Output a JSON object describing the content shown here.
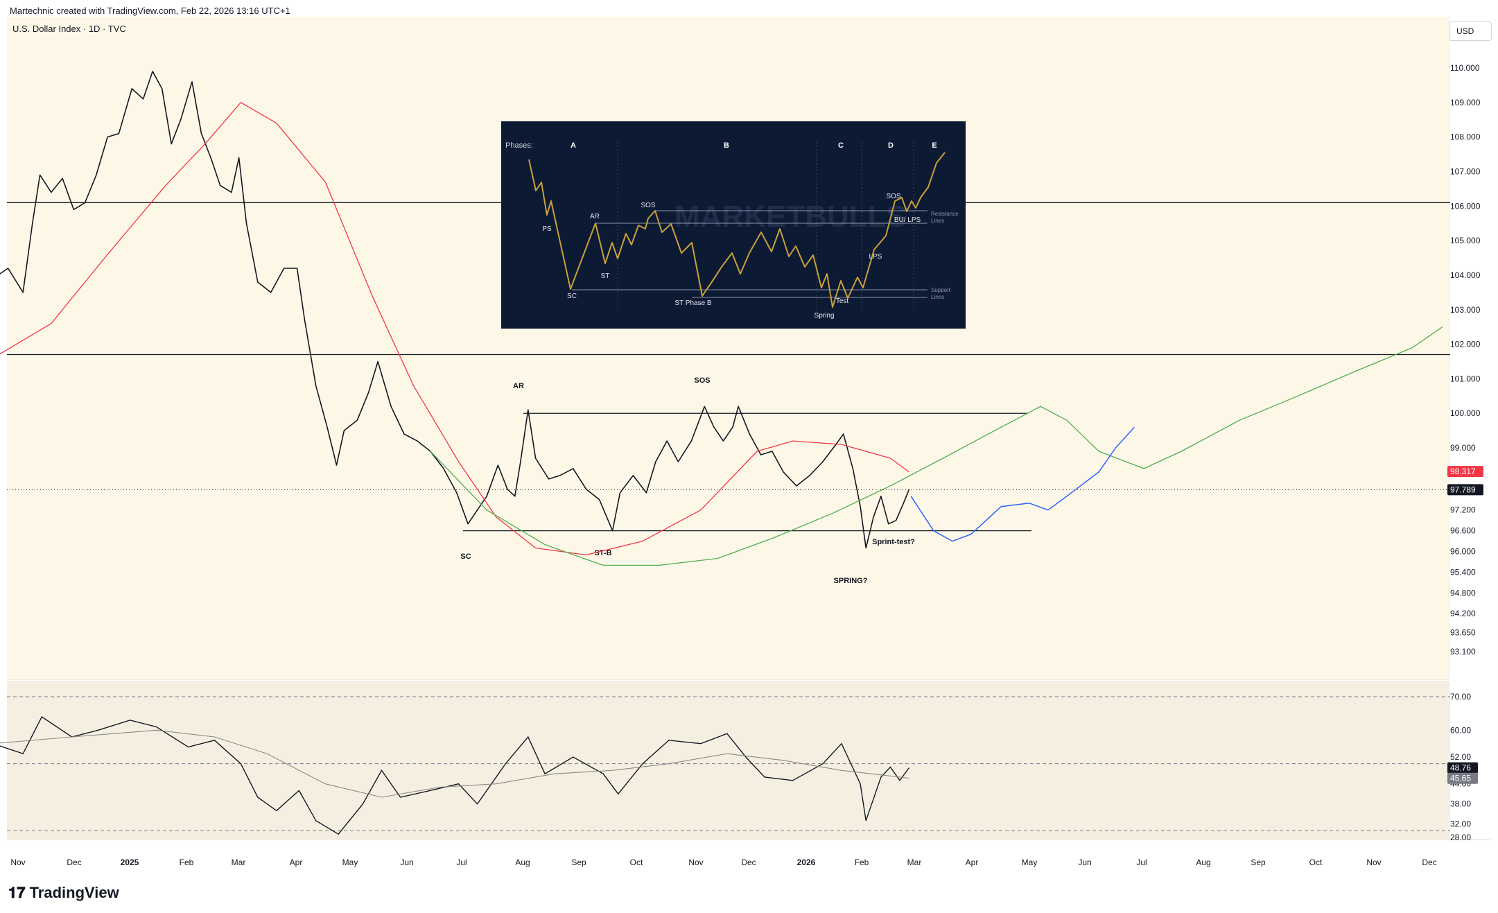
{
  "header": {
    "credit": "Martechnic created with TradingView.com, Feb 22, 2026 13:16 UTC+1"
  },
  "symbol": {
    "title": "U.S. Dollar Index · 1D · TVC"
  },
  "currency_button": "USD",
  "footer": {
    "brand": "TradingView"
  },
  "colors": {
    "background": "#fdf7e7",
    "ma_red": "#f23645",
    "ma_green": "#4caf50",
    "projection_blue": "#2962ff",
    "inset_bg": "#0d1a33",
    "inset_line": "#c9a13a"
  },
  "chart_data": [
    {
      "type": "line",
      "title": "U.S. Dollar Index · 1D · TVC",
      "xlabel": "",
      "ylabel": "",
      "x_ticks": [
        "Nov",
        "Dec",
        "2025",
        "Feb",
        "Mar",
        "Apr",
        "May",
        "Jun",
        "Jul",
        "Aug",
        "Sep",
        "Oct",
        "Nov",
        "Dec",
        "2026",
        "Feb",
        "Mar",
        "Apr",
        "May",
        "Jun",
        "Jul",
        "Aug",
        "Sep",
        "Oct",
        "Nov",
        "Dec"
      ],
      "y_ticks": [
        "110.000",
        "109.000",
        "108.000",
        "107.000",
        "106.000",
        "105.000",
        "104.000",
        "103.000",
        "102.000",
        "101.000",
        "100.000",
        "99.000",
        "97.200",
        "96.600",
        "96.000",
        "95.400",
        "94.800",
        "94.200",
        "93.650",
        "93.100"
      ],
      "ylim": [
        92.6,
        111.2
      ],
      "price_labels": [
        {
          "label": "98.317",
          "value": 98.317,
          "color": "#f23645"
        },
        {
          "label": "97.789",
          "value": 97.789,
          "color": "#131722"
        }
      ],
      "series": [
        {
          "values": [
            [
              "2024-10-20",
              103.9
            ],
            [
              "2024-10-28",
              104.2
            ],
            [
              "2024-11-05",
              103.5
            ],
            [
              "2024-11-10",
              105.5
            ],
            [
              "2024-11-14",
              106.9
            ],
            [
              "2024-11-20",
              106.4
            ],
            [
              "2024-11-26",
              106.8
            ],
            [
              "2024-12-02",
              105.9
            ],
            [
              "2024-12-08",
              106.1
            ],
            [
              "2024-12-14",
              106.9
            ],
            [
              "2024-12-20",
              108.0
            ],
            [
              "2024-12-26",
              108.1
            ],
            [
              "2025-01-02",
              109.4
            ],
            [
              "2025-01-08",
              109.1
            ],
            [
              "2025-01-13",
              109.9
            ],
            [
              "2025-01-18",
              109.4
            ],
            [
              "2025-01-23",
              107.8
            ],
            [
              "2025-01-28",
              108.5
            ],
            [
              "2025-02-03",
              109.6
            ],
            [
              "2025-02-08",
              108.1
            ],
            [
              "2025-02-13",
              107.4
            ],
            [
              "2025-02-18",
              106.6
            ],
            [
              "2025-02-24",
              106.4
            ],
            [
              "2025-02-28",
              107.4
            ],
            [
              "2025-03-04",
              105.5
            ],
            [
              "2025-03-10",
              103.8
            ],
            [
              "2025-03-17",
              103.5
            ],
            [
              "2025-03-24",
              104.2
            ],
            [
              "2025-03-31",
              104.2
            ],
            [
              "2025-04-04",
              102.7
            ],
            [
              "2025-04-10",
              100.8
            ],
            [
              "2025-04-16",
              99.6
            ],
            [
              "2025-04-21",
              98.5
            ],
            [
              "2025-04-25",
              99.5
            ],
            [
              "2025-05-02",
              99.8
            ],
            [
              "2025-05-08",
              100.6
            ],
            [
              "2025-05-13",
              101.5
            ],
            [
              "2025-05-20",
              100.2
            ],
            [
              "2025-05-27",
              99.4
            ],
            [
              "2025-06-03",
              99.2
            ],
            [
              "2025-06-10",
              98.9
            ],
            [
              "2025-06-17",
              98.4
            ],
            [
              "2025-06-24",
              97.7
            ],
            [
              "2025-06-30",
              96.8
            ],
            [
              "2025-07-05",
              97.2
            ],
            [
              "2025-07-10",
              97.6
            ],
            [
              "2025-07-16",
              98.5
            ],
            [
              "2025-07-21",
              97.8
            ],
            [
              "2025-07-25",
              97.6
            ],
            [
              "2025-07-28",
              98.6
            ],
            [
              "2025-08-01",
              100.1
            ],
            [
              "2025-08-05",
              98.7
            ],
            [
              "2025-08-12",
              98.1
            ],
            [
              "2025-08-18",
              98.2
            ],
            [
              "2025-08-25",
              98.4
            ],
            [
              "2025-09-01",
              97.8
            ],
            [
              "2025-09-08",
              97.5
            ],
            [
              "2025-09-15",
              96.6
            ],
            [
              "2025-09-19",
              97.7
            ],
            [
              "2025-09-26",
              98.2
            ],
            [
              "2025-10-03",
              97.7
            ],
            [
              "2025-10-08",
              98.6
            ],
            [
              "2025-10-14",
              99.2
            ],
            [
              "2025-10-20",
              98.6
            ],
            [
              "2025-10-27",
              99.2
            ],
            [
              "2025-11-03",
              100.2
            ],
            [
              "2025-11-08",
              99.6
            ],
            [
              "2025-11-13",
              99.2
            ],
            [
              "2025-11-18",
              99.6
            ],
            [
              "2025-11-21",
              100.2
            ],
            [
              "2025-11-27",
              99.4
            ],
            [
              "2025-12-03",
              98.8
            ],
            [
              "2025-12-09",
              98.9
            ],
            [
              "2025-12-15",
              98.3
            ],
            [
              "2025-12-22",
              97.9
            ],
            [
              "2025-12-29",
              98.2
            ],
            [
              "2026-01-05",
              98.6
            ],
            [
              "2026-01-12",
              99.1
            ],
            [
              "2026-01-16",
              99.4
            ],
            [
              "2026-01-21",
              98.4
            ],
            [
              "2026-01-25",
              97.3
            ],
            [
              "2026-01-28",
              96.1
            ],
            [
              "2026-02-01",
              97.0
            ],
            [
              "2026-02-05",
              97.6
            ],
            [
              "2026-02-09",
              96.8
            ],
            [
              "2026-02-13",
              96.9
            ],
            [
              "2026-02-17",
              97.4
            ],
            [
              "2026-02-20",
              97.8
            ]
          ]
        },
        {
          "values": [
            [
              "2024-10-20",
              101.6
            ],
            [
              "2024-11-20",
              102.6
            ],
            [
              "2024-12-20",
              104.6
            ],
            [
              "2025-01-20",
              106.6
            ],
            [
              "2025-02-10",
              107.8
            ],
            [
              "2025-03-01",
              109.0
            ],
            [
              "2025-03-20",
              108.4
            ],
            [
              "2025-04-15",
              106.7
            ],
            [
              "2025-05-10",
              103.4
            ],
            [
              "2025-06-01",
              100.8
            ],
            [
              "2025-06-25",
              98.6
            ],
            [
              "2025-07-15",
              97.0
            ],
            [
              "2025-08-05",
              96.1
            ],
            [
              "2025-09-01",
              95.9
            ],
            [
              "2025-10-01",
              96.3
            ],
            [
              "2025-11-01",
              97.2
            ],
            [
              "2025-12-01",
              98.9
            ],
            [
              "2025-12-20",
              99.2
            ],
            [
              "2026-01-15",
              99.1
            ],
            [
              "2026-02-10",
              98.7
            ],
            [
              "2026-02-20",
              98.3
            ]
          ]
        },
        {
          "values": [
            [
              "2025-06-10",
              98.9
            ],
            [
              "2025-07-10",
              97.2
            ],
            [
              "2025-08-10",
              96.2
            ],
            [
              "2025-09-10",
              95.6
            ],
            [
              "2025-10-10",
              95.6
            ],
            [
              "2025-11-10",
              95.8
            ],
            [
              "2025-12-10",
              96.4
            ],
            [
              "2026-01-10",
              97.1
            ],
            [
              "2026-02-10",
              97.9
            ],
            [
              "2026-03-10",
              98.7
            ],
            [
              "2026-04-10",
              99.6
            ],
            [
              "2026-05-01",
              100.2
            ],
            [
              "2026-05-15",
              99.8
            ],
            [
              "2026-06-01",
              98.9
            ],
            [
              "2026-06-25",
              98.4
            ],
            [
              "2026-07-15",
              98.9
            ],
            [
              "2026-08-15",
              99.8
            ],
            [
              "2026-09-15",
              100.5
            ],
            [
              "2026-10-15",
              101.2
            ],
            [
              "2026-11-15",
              101.9
            ],
            [
              "2026-12-01",
              102.5
            ]
          ]
        },
        {
          "values": [
            [
              "2026-02-21",
              97.6
            ],
            [
              "2026-03-05",
              96.6
            ],
            [
              "2026-03-15",
              96.3
            ],
            [
              "2026-03-25",
              96.5
            ],
            [
              "2026-04-10",
              97.3
            ],
            [
              "2026-04-25",
              97.4
            ],
            [
              "2026-05-05",
              97.2
            ],
            [
              "2026-05-15",
              97.6
            ],
            [
              "2026-06-01",
              98.3
            ],
            [
              "2026-06-10",
              99.0
            ],
            [
              "2026-06-20",
              99.6
            ]
          ]
        }
      ],
      "levels": [
        106.1,
        101.7,
        100.0,
        96.6
      ],
      "annotations": [
        "AR",
        "SOS",
        "SC",
        "ST-B",
        "Sprint-test?",
        "SPRING?"
      ]
    },
    {
      "type": "line",
      "title": "",
      "y_ticks": [
        "70.00",
        "60.00",
        "52.00",
        "44.00",
        "38.00",
        "32.00",
        "28.00"
      ],
      "ylim": [
        27,
        72
      ],
      "price_labels": [
        {
          "label": "48.76",
          "value": 48.76,
          "color": "#131722"
        },
        {
          "label": "45.65",
          "value": 45.65,
          "color": "#787b86"
        }
      ],
      "series": [
        {
          "values": [
            [
              "2024-10-20",
              56
            ],
            [
              "2024-11-05",
              53
            ],
            [
              "2024-11-15",
              64
            ],
            [
              "2024-12-01",
              58
            ],
            [
              "2024-12-15",
              60
            ],
            [
              "2025-01-01",
              63
            ],
            [
              "2025-01-15",
              61
            ],
            [
              "2025-02-01",
              55
            ],
            [
              "2025-02-15",
              57
            ],
            [
              "2025-03-01",
              50
            ],
            [
              "2025-03-10",
              40
            ],
            [
              "2025-03-20",
              36
            ],
            [
              "2025-04-01",
              42
            ],
            [
              "2025-04-10",
              33
            ],
            [
              "2025-04-22",
              29
            ],
            [
              "2025-05-05",
              38
            ],
            [
              "2025-05-15",
              48
            ],
            [
              "2025-05-25",
              40
            ],
            [
              "2025-06-10",
              42
            ],
            [
              "2025-06-25",
              44
            ],
            [
              "2025-07-05",
              38
            ],
            [
              "2025-07-20",
              50
            ],
            [
              "2025-08-01",
              58
            ],
            [
              "2025-08-10",
              47
            ],
            [
              "2025-08-25",
              52
            ],
            [
              "2025-09-10",
              47
            ],
            [
              "2025-09-18",
              41
            ],
            [
              "2025-10-01",
              50
            ],
            [
              "2025-10-15",
              57
            ],
            [
              "2025-11-01",
              56
            ],
            [
              "2025-11-15",
              59
            ],
            [
              "2025-11-25",
              52
            ],
            [
              "2025-12-05",
              46
            ],
            [
              "2025-12-20",
              45
            ],
            [
              "2026-01-05",
              50
            ],
            [
              "2026-01-15",
              56
            ],
            [
              "2026-01-25",
              44
            ],
            [
              "2026-01-28",
              33
            ],
            [
              "2026-02-05",
              46
            ],
            [
              "2026-02-10",
              49
            ],
            [
              "2026-02-15",
              45
            ],
            [
              "2026-02-20",
              48.8
            ]
          ]
        },
        {
          "values": [
            [
              "2024-10-20",
              56
            ],
            [
              "2024-12-01",
              58
            ],
            [
              "2025-01-15",
              60
            ],
            [
              "2025-02-15",
              58
            ],
            [
              "2025-03-15",
              53
            ],
            [
              "2025-04-15",
              44
            ],
            [
              "2025-05-15",
              40
            ],
            [
              "2025-06-15",
              43
            ],
            [
              "2025-07-15",
              44
            ],
            [
              "2025-08-15",
              47
            ],
            [
              "2025-09-15",
              48
            ],
            [
              "2025-10-15",
              50
            ],
            [
              "2025-11-15",
              53
            ],
            [
              "2025-12-15",
              51
            ],
            [
              "2026-01-15",
              48
            ],
            [
              "2026-02-20",
              45.7
            ]
          ]
        }
      ],
      "reference_lines": [
        70,
        50,
        30
      ]
    }
  ],
  "inset": {
    "phases_label": "Phases:",
    "phases": [
      "A",
      "B",
      "C",
      "D",
      "E"
    ],
    "watermark": "MARKETBULLS",
    "labels": [
      "PS",
      "SC",
      "AR",
      "ST",
      "SOS",
      "ST Phase B",
      "Spring",
      "Test",
      "LPS",
      "SOS",
      "BU/ LPS"
    ],
    "resistance_label": [
      "Resistance",
      "Lines"
    ],
    "support_label": [
      "Support",
      "Lines"
    ]
  }
}
